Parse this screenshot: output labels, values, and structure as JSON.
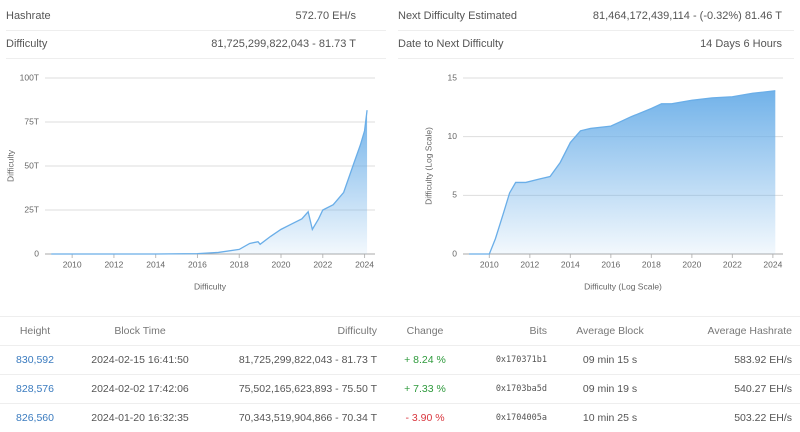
{
  "stats": [
    {
      "label": "Hashrate",
      "value": "572.70 EH/s"
    },
    {
      "label": "Difficulty",
      "value": "81,725,299,822,043 - 81.73 T"
    },
    {
      "label": "Next Difficulty Estimated",
      "value": "81,464,172,439,114 - (-0.32%) 81.46 T"
    },
    {
      "label": "Date to Next Difficulty",
      "value": "14 Days 6 Hours"
    }
  ],
  "chart_data": [
    {
      "type": "area",
      "x_label": "Difficulty",
      "y_label": "Difficulty",
      "color": "#6aaee8",
      "x": [
        2009,
        2012,
        2014,
        2016,
        2017,
        2018,
        2018.5,
        2018.9,
        2019,
        2019.5,
        2020,
        2020.5,
        2021,
        2021.3,
        2021.5,
        2021.8,
        2022,
        2022.5,
        2023,
        2023.5,
        2023.8,
        2024,
        2024.12
      ],
      "values": [
        0,
        0,
        0.02,
        0.2,
        0.9,
        2.6,
        6,
        7,
        5.5,
        10,
        14,
        17,
        20,
        24,
        14,
        20,
        25,
        28,
        35,
        52,
        62,
        70,
        81.73
      ],
      "xlim": [
        2008.7,
        2024.5
      ],
      "xticks": [
        2010,
        2012,
        2014,
        2016,
        2018,
        2020,
        2022,
        2024
      ],
      "ylim": [
        0,
        100
      ],
      "yticks": [
        0,
        {
          "value": 25,
          "label": "25T"
        },
        {
          "value": 50,
          "label": "50T"
        },
        {
          "value": 75,
          "label": "75T"
        },
        {
          "value": 100,
          "label": "100T"
        }
      ],
      "grid": true
    },
    {
      "type": "area",
      "x_label": "Difficulty (Log Scale)",
      "y_label": "Difficulty (Log Scale)",
      "color": "#6aaee8",
      "x": [
        2009,
        2010,
        2010.3,
        2010.7,
        2011,
        2011.3,
        2011.8,
        2012.5,
        2013,
        2013.5,
        2014,
        2014.5,
        2015,
        2016,
        2016.5,
        2017,
        2018,
        2018.5,
        2019,
        2020,
        2021,
        2022,
        2023,
        2024.12
      ],
      "values": [
        0,
        0,
        1.3,
        3.5,
        5.2,
        6.1,
        6.1,
        6.4,
        6.6,
        7.8,
        9.5,
        10.5,
        10.7,
        10.9,
        11.3,
        11.7,
        12.4,
        12.8,
        12.8,
        13.1,
        13.3,
        13.4,
        13.7,
        13.91
      ],
      "xlim": [
        2008.7,
        2024.5
      ],
      "xticks": [
        2010,
        2012,
        2014,
        2016,
        2018,
        2020,
        2022,
        2024
      ],
      "ylim": [
        0,
        15
      ],
      "yticks": [
        0,
        5,
        10,
        15
      ],
      "grid": true
    }
  ],
  "table": {
    "columns": [
      "Height",
      "Block Time",
      "Difficulty",
      "Change",
      "Bits",
      "Average Block",
      "Average Hashrate"
    ],
    "rows": [
      [
        "830,592",
        "2024-02-15 16:41:50",
        "81,725,299,822,043 - 81.73 T",
        "+ 8.24 %",
        "0x170371b1",
        "09 min 15 s",
        "583.92 EH/s"
      ],
      [
        "828,576",
        "2024-02-02 17:42:06",
        "75,502,165,623,893 - 75.50 T",
        "+ 7.33 %",
        "0x1703ba5d",
        "09 min 19 s",
        "540.27 EH/s"
      ],
      [
        "826,560",
        "2024-01-20 16:32:35",
        "70,343,519,904,866 - 70.34 T",
        "- 3.90 %",
        "0x1704005a",
        "10 min 25 s",
        "503.22 EH/s"
      ]
    ],
    "change_colors": [
      "#2e9a3c",
      "#2e9a3c",
      "#d9363e"
    ],
    "link_color": "#3a7bbf"
  }
}
